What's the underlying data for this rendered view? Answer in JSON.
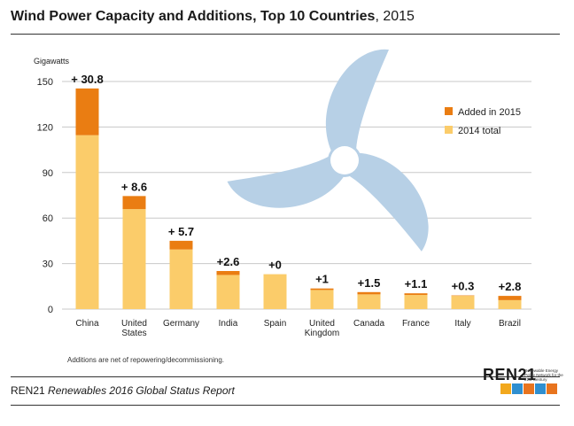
{
  "header": {
    "title_bold": "Wind Power Capacity and Additions, Top 10 Countries",
    "title_light": ", 2015"
  },
  "footer": {
    "note": "Additions are net of repowering/decommissioning.",
    "source_prefix": "REN21",
    "source_italic": "Renewables 2016 Global Status Report",
    "logo_text": "REN21",
    "logo_tagline": "Renewable Energy Policy Network for the 21st Century",
    "logo_icons": [
      "sun-icon",
      "wind-icon",
      "power-icon",
      "wave-icon",
      "flame-icon"
    ]
  },
  "colors": {
    "added": "#ea7d12",
    "base": "#fbcc6a",
    "turbine": "#b7d0e6",
    "grid": "#c8c8c8"
  },
  "chart_data": {
    "type": "bar",
    "stacked": true,
    "title": "Wind Power Capacity and Additions, Top 10 Countries, 2015",
    "ylabel": "Gigawatts",
    "ylim": [
      0,
      150
    ],
    "yticks": [
      0,
      30,
      60,
      90,
      120,
      150
    ],
    "grid": true,
    "legend_position": "top-right",
    "categories": [
      [
        "China"
      ],
      [
        "United",
        "States"
      ],
      [
        "Germany"
      ],
      [
        "India"
      ],
      [
        "Spain"
      ],
      [
        "United",
        "Kingdom"
      ],
      [
        "Canada"
      ],
      [
        "France"
      ],
      [
        "Italy"
      ],
      [
        "Brazil"
      ]
    ],
    "series": [
      {
        "name": "2014 total",
        "values": [
          114.6,
          65.9,
          39.3,
          22.5,
          23.0,
          12.6,
          9.7,
          9.3,
          8.7,
          5.9
        ]
      },
      {
        "name": "Added in 2015",
        "values": [
          30.8,
          8.6,
          5.7,
          2.6,
          0,
          1,
          1.5,
          1.1,
          0.3,
          2.8
        ]
      }
    ],
    "data_labels": [
      "+ 30.8",
      "+ 8.6",
      "+ 5.7",
      "+2.6",
      "+0",
      "+1",
      "+1.5",
      "+1.1",
      "+0.3",
      "+2.8"
    ],
    "legend": [
      "Added in 2015",
      "2014 total"
    ]
  }
}
